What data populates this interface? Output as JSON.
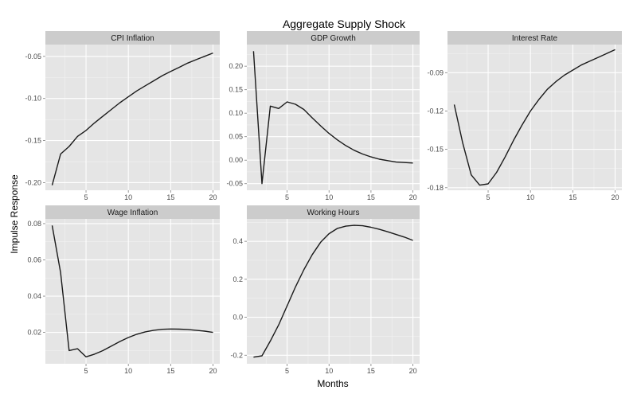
{
  "chart_data": {
    "type": "line",
    "title": "Aggregate Supply Shock",
    "xlabel": "Months",
    "ylabel": "Impulse Response",
    "x_breaks": [
      5,
      10,
      15,
      20
    ],
    "xlim": [
      0.2,
      20.8
    ],
    "grid": true,
    "panels": [
      {
        "id": "cpi-inflation",
        "name": "CPI Inflation",
        "x": [
          1,
          2,
          3,
          4,
          5,
          6,
          7,
          8,
          9,
          10,
          11,
          12,
          13,
          14,
          15,
          16,
          17,
          18,
          19,
          20
        ],
        "y": [
          -0.203,
          -0.166,
          -0.157,
          -0.145,
          -0.138,
          -0.129,
          -0.121,
          -0.113,
          -0.105,
          -0.098,
          -0.091,
          -0.085,
          -0.079,
          -0.073,
          -0.068,
          -0.063,
          -0.058,
          -0.054,
          -0.05,
          -0.046
        ],
        "ylim": [
          -0.209,
          -0.036
        ],
        "y_breaks": [
          -0.2,
          -0.15,
          -0.1,
          -0.05
        ],
        "y_labels": [
          "-0.20",
          "-0.15",
          "-0.10",
          "-0.05"
        ]
      },
      {
        "id": "gdp-growth",
        "name": "GDP Growth",
        "x": [
          1,
          2,
          3,
          4,
          5,
          6,
          7,
          8,
          9,
          10,
          11,
          12,
          13,
          14,
          15,
          16,
          17,
          18,
          19,
          20
        ],
        "y": [
          0.232,
          -0.05,
          0.115,
          0.11,
          0.124,
          0.119,
          0.108,
          0.09,
          0.073,
          0.057,
          0.043,
          0.031,
          0.021,
          0.013,
          0.007,
          0.002,
          -0.001,
          -0.004,
          -0.005,
          -0.006
        ],
        "ylim": [
          -0.064,
          0.246
        ],
        "y_breaks": [
          -0.05,
          0.0,
          0.05,
          0.1,
          0.15,
          0.2
        ],
        "y_labels": [
          "-0.05",
          "0.00",
          "0.05",
          "0.10",
          "0.15",
          "0.20"
        ]
      },
      {
        "id": "interest-rate",
        "name": "Interest Rate",
        "x": [
          1,
          2,
          3,
          4,
          5,
          6,
          7,
          8,
          9,
          10,
          11,
          12,
          13,
          14,
          15,
          16,
          17,
          18,
          19,
          20
        ],
        "y": [
          -0.115,
          -0.145,
          -0.17,
          -0.178,
          -0.177,
          -0.168,
          -0.156,
          -0.143,
          -0.131,
          -0.12,
          -0.111,
          -0.103,
          -0.097,
          -0.092,
          -0.088,
          -0.084,
          -0.081,
          -0.078,
          -0.075,
          -0.072
        ],
        "ylim": [
          -0.182,
          -0.068
        ],
        "y_breaks": [
          -0.18,
          -0.15,
          -0.12,
          -0.09
        ],
        "y_labels": [
          "-0.18",
          "-0.15",
          "-0.12",
          "-0.09"
        ]
      },
      {
        "id": "wage-inflation",
        "name": "Wage Inflation",
        "x": [
          1,
          2,
          3,
          4,
          5,
          6,
          7,
          8,
          9,
          10,
          11,
          12,
          13,
          14,
          15,
          16,
          17,
          18,
          19,
          20
        ],
        "y": [
          0.079,
          0.053,
          0.01,
          0.011,
          0.0065,
          0.008,
          0.01,
          0.0125,
          0.015,
          0.0172,
          0.019,
          0.0203,
          0.0212,
          0.0217,
          0.0219,
          0.0218,
          0.0216,
          0.0212,
          0.0207,
          0.02
        ],
        "ylim": [
          0.0027,
          0.0826
        ],
        "y_breaks": [
          0.02,
          0.04,
          0.06,
          0.08
        ],
        "y_labels": [
          "0.02",
          "0.04",
          "0.06",
          "0.08"
        ]
      },
      {
        "id": "working-hours",
        "name": "Working Hours",
        "x": [
          1,
          2,
          3,
          4,
          5,
          6,
          7,
          8,
          9,
          10,
          11,
          12,
          13,
          14,
          15,
          16,
          17,
          18,
          19,
          20
        ],
        "y": [
          -0.21,
          -0.203,
          -0.125,
          -0.04,
          0.06,
          0.16,
          0.25,
          0.33,
          0.395,
          0.44,
          0.468,
          0.48,
          0.484,
          0.482,
          0.474,
          0.463,
          0.45,
          0.436,
          0.422,
          0.405
        ],
        "ylim": [
          -0.245,
          0.518
        ],
        "y_breaks": [
          -0.2,
          0.0,
          0.2,
          0.4
        ],
        "y_labels": [
          "-0.2",
          "0.0",
          "0.2",
          "0.4"
        ]
      }
    ]
  }
}
